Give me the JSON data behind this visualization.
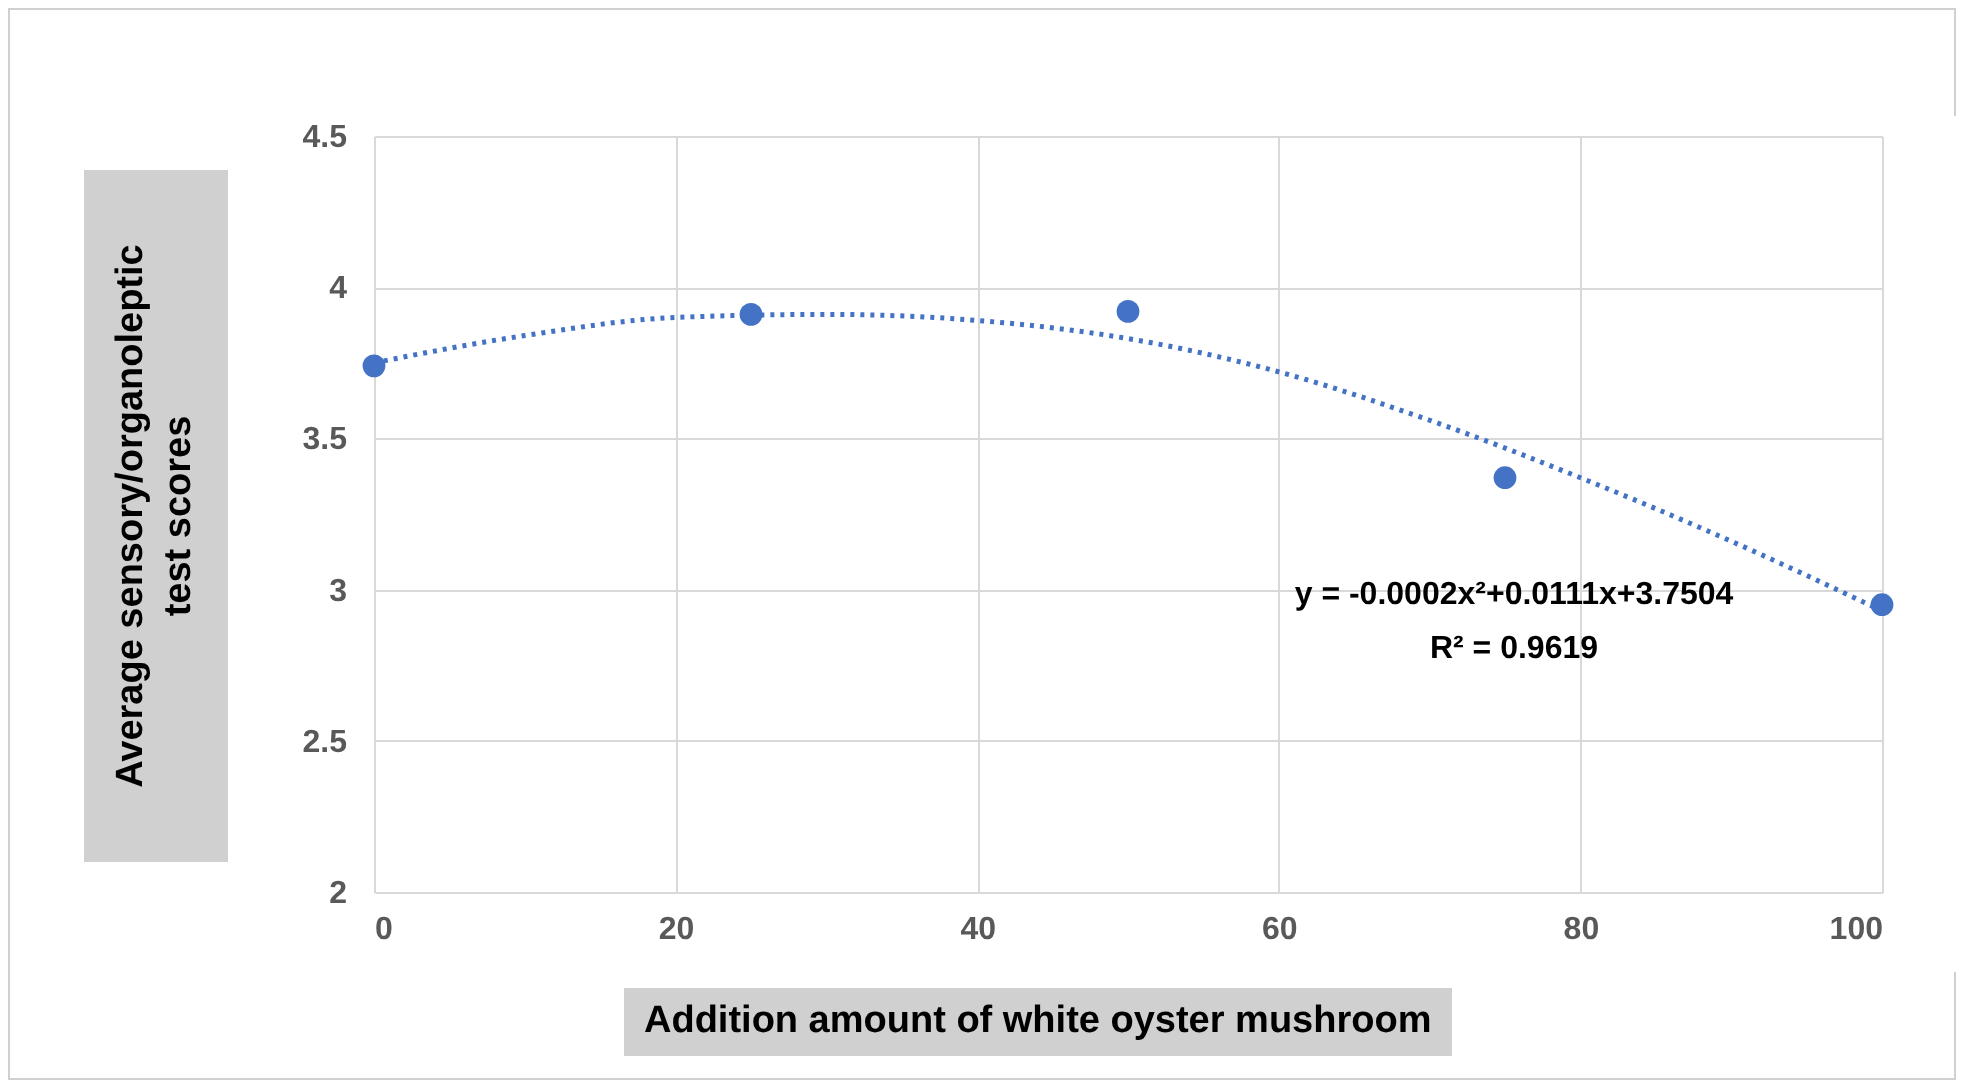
{
  "chart_data": {
    "type": "scatter",
    "xlabel": "Addition amount of white oyster mushroom",
    "ylabel": "Average sensory/organoleptic test scores",
    "x": [
      0,
      25,
      50,
      75,
      100
    ],
    "series": [
      {
        "color": "#4472c4",
        "marker": "circle",
        "values": [
          3.74,
          3.91,
          3.92,
          3.37,
          2.95
        ]
      },
      {
        "type": "line",
        "color": "#4472c4",
        "line_style": "dotted",
        "marker": "none",
        "x": [
          0,
          10,
          20,
          30,
          40,
          50,
          60,
          70,
          80,
          90,
          100
        ],
        "values": [
          3.75,
          3.84,
          3.9,
          3.91,
          3.89,
          3.83,
          3.72,
          3.56,
          3.37,
          3.16,
          2.93
        ]
      }
    ],
    "annotations": [
      "y = -0.0002x²+0.0111x+3.7504",
      "R² = 0.9619"
    ],
    "xlim": [
      0,
      100
    ],
    "xticks": [
      0,
      20,
      40,
      60,
      80,
      100
    ],
    "ylim": [
      2,
      4.5
    ],
    "yticks": [
      2,
      2.5,
      3,
      3.5,
      4,
      4.5
    ],
    "grid": true
  }
}
